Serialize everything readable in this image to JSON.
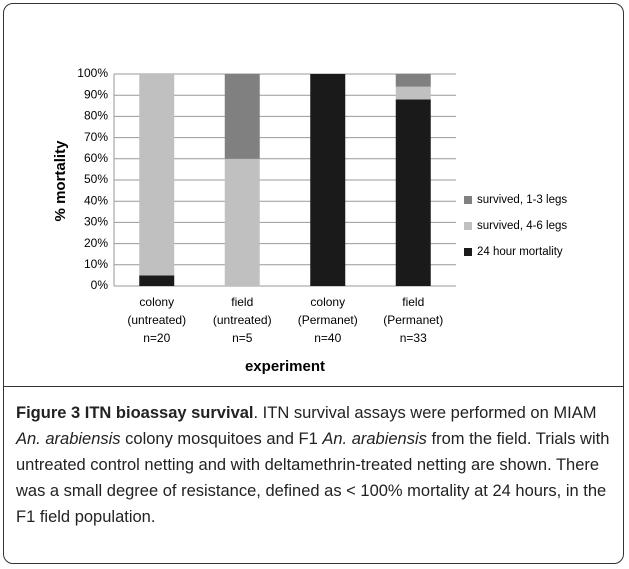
{
  "chart_data": {
    "type": "stacked_bar",
    "ylabel": "% mortality",
    "xlabel": "experiment",
    "categories": [
      [
        "colony",
        "(untreated)",
        "n=20"
      ],
      [
        "field",
        "(untreated)",
        "n=5"
      ],
      [
        "colony",
        "(Permanet)",
        "n=40"
      ],
      [
        "field",
        "(Permanet)",
        "n=33"
      ]
    ],
    "series": [
      {
        "name": "survived, 1-3 legs",
        "color": "#808080",
        "values": [
          0,
          40,
          0,
          6
        ]
      },
      {
        "name": "survived, 4-6 legs",
        "color": "#c0c0c0",
        "values": [
          95,
          60,
          0,
          6
        ]
      },
      {
        "name": "24 hour mortality",
        "color": "#1a1a1a",
        "values": [
          5,
          0,
          100,
          88
        ]
      }
    ],
    "ylim": [
      0,
      100
    ],
    "yticks": [
      {
        "value": 0,
        "label": "0%"
      },
      {
        "value": 10,
        "label": "10%"
      },
      {
        "value": 20,
        "label": "20%"
      },
      {
        "value": 30,
        "label": "30%"
      },
      {
        "value": 40,
        "label": "40%"
      },
      {
        "value": 50,
        "label": "50%"
      },
      {
        "value": 60,
        "label": "60%"
      },
      {
        "value": 70,
        "label": "70%"
      },
      {
        "value": 80,
        "label": "80%"
      },
      {
        "value": 90,
        "label": "90%"
      },
      {
        "value": 100,
        "label": "100%"
      }
    ],
    "grid": true,
    "legend": "right"
  },
  "caption": {
    "title": "Figure 3 ITN bioassay survival",
    "runs": [
      {
        "text": ". ITN survival assays were performed on MIAM ",
        "italic": false
      },
      {
        "text": "An. arabiensis",
        "italic": true
      },
      {
        "text": " colony mosquitoes and F1 ",
        "italic": false
      },
      {
        "text": "An. arabiensis",
        "italic": true
      },
      {
        "text": " from the field. Trials with untreated control netting and with deltamethrin-treated netting are shown. There was a small degree of resistance, defined as < 100% mortality at 24 hours, in the F1 field population.",
        "italic": false
      }
    ]
  }
}
